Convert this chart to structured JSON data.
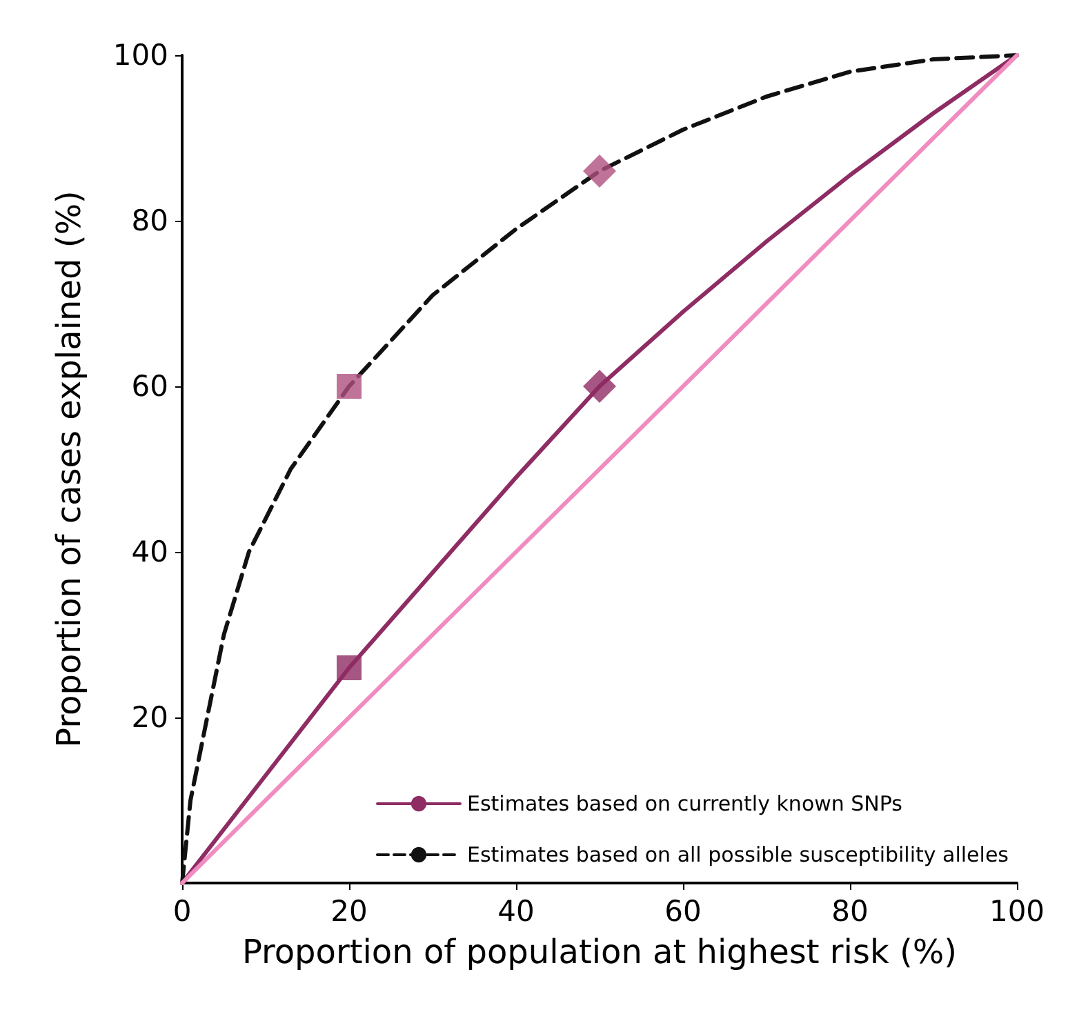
{
  "chart_data": {
    "type": "line",
    "xlabel": "Proportion of population at highest risk (%)",
    "ylabel": "Proportion of cases explained (%)",
    "xlim": [
      0,
      100
    ],
    "xticks": [
      0,
      20,
      40,
      60,
      80,
      100
    ],
    "ylim": [
      0,
      100
    ],
    "yticks": [
      20,
      40,
      60,
      80,
      100
    ],
    "legend": "bottom right",
    "grid": false,
    "series": [
      {
        "name": "Estimates based on currently known SNPs",
        "color": "#8e2c63",
        "line_style": "solid",
        "x": [
          0,
          10,
          20,
          30,
          40,
          50,
          60,
          70,
          80,
          90,
          100
        ],
        "values": [
          0,
          13,
          26,
          37.5,
          49,
          60,
          69,
          77.5,
          85.5,
          93,
          100
        ]
      },
      {
        "name": "Estimates based on all possible susceptibility alleles",
        "color": "#111111",
        "line_style": "dashed",
        "x": [
          0,
          1,
          3,
          5,
          8,
          13,
          20,
          30,
          40,
          50,
          60,
          70,
          80,
          90,
          100
        ],
        "values": [
          0,
          10,
          20,
          30,
          40,
          50,
          60,
          71,
          79,
          86,
          91,
          95,
          98,
          99.5,
          100
        ]
      },
      {
        "color": "#f08cc0",
        "line_style": "solid",
        "x": [
          0,
          100
        ],
        "values": [
          0,
          100
        ]
      },
      {
        "type": "scatter",
        "marker": "square",
        "color": "#8e2c63",
        "x": [
          20
        ],
        "values": [
          26
        ]
      },
      {
        "type": "scatter",
        "marker": "diamond",
        "color": "#8e2c63",
        "x": [
          50
        ],
        "values": [
          60
        ]
      },
      {
        "type": "scatter",
        "marker": "square",
        "color": "#b0507e",
        "x": [
          20
        ],
        "values": [
          60
        ]
      },
      {
        "type": "scatter",
        "marker": "diamond",
        "color": "#b0507e",
        "x": [
          50
        ],
        "values": [
          86
        ]
      }
    ]
  }
}
